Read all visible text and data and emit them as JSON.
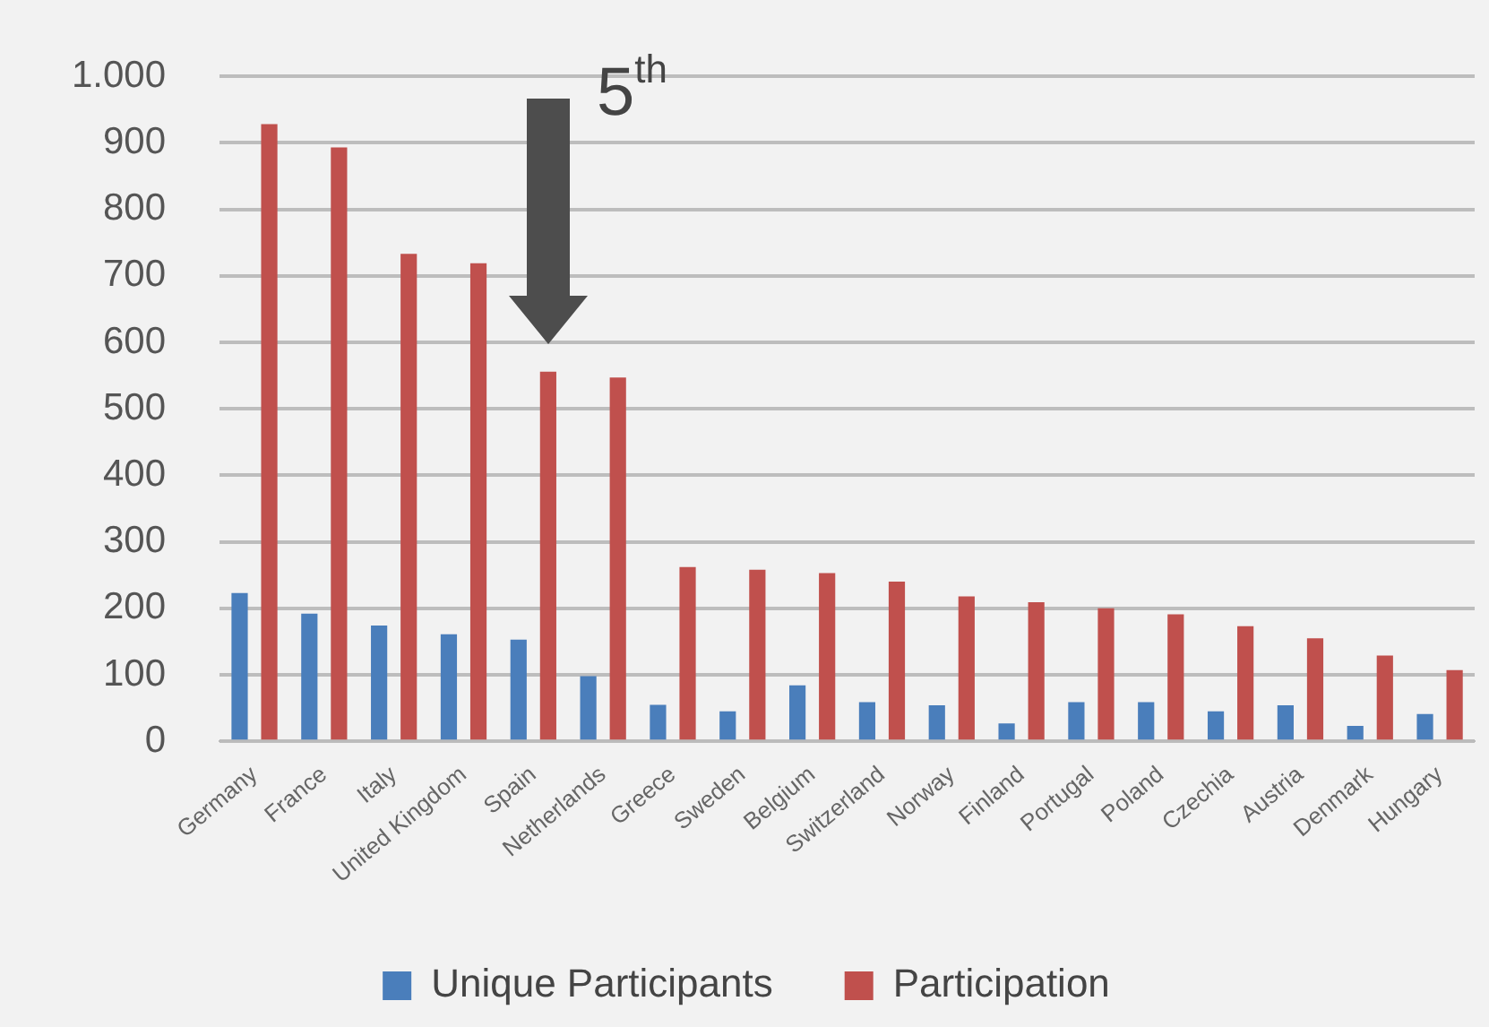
{
  "chart_data": {
    "type": "bar",
    "categories": [
      "Germany",
      "France",
      "Italy",
      "United Kingdom",
      "Spain",
      "Netherlands",
      "Greece",
      "Sweden",
      "Belgium",
      "Switzerland",
      "Norway",
      "Finland",
      "Portugal",
      "Poland",
      "Czechia",
      "Austria",
      "Denmark",
      "Hungary"
    ],
    "series": [
      {
        "name": "Unique Participants",
        "color": "#4a7ebb",
        "values": [
          223,
          192,
          174,
          161,
          153,
          98,
          55,
          45,
          84,
          59,
          54,
          27,
          59,
          59,
          45,
          54,
          23,
          41
        ]
      },
      {
        "name": "Participation",
        "color": "#c0504d",
        "values": [
          928,
          893,
          733,
          719,
          556,
          547,
          262,
          258,
          253,
          240,
          218,
          209,
          200,
          191,
          173,
          155,
          129,
          107
        ]
      }
    ],
    "ylim": [
      0,
      1000
    ],
    "yticks": [
      0,
      100,
      200,
      300,
      400,
      500,
      600,
      700,
      800,
      900,
      {
        "value": 1000,
        "label": "1.000"
      }
    ],
    "grid": "y",
    "legend": "bottom",
    "annotations": [
      "5$^{th}$"
    ]
  }
}
